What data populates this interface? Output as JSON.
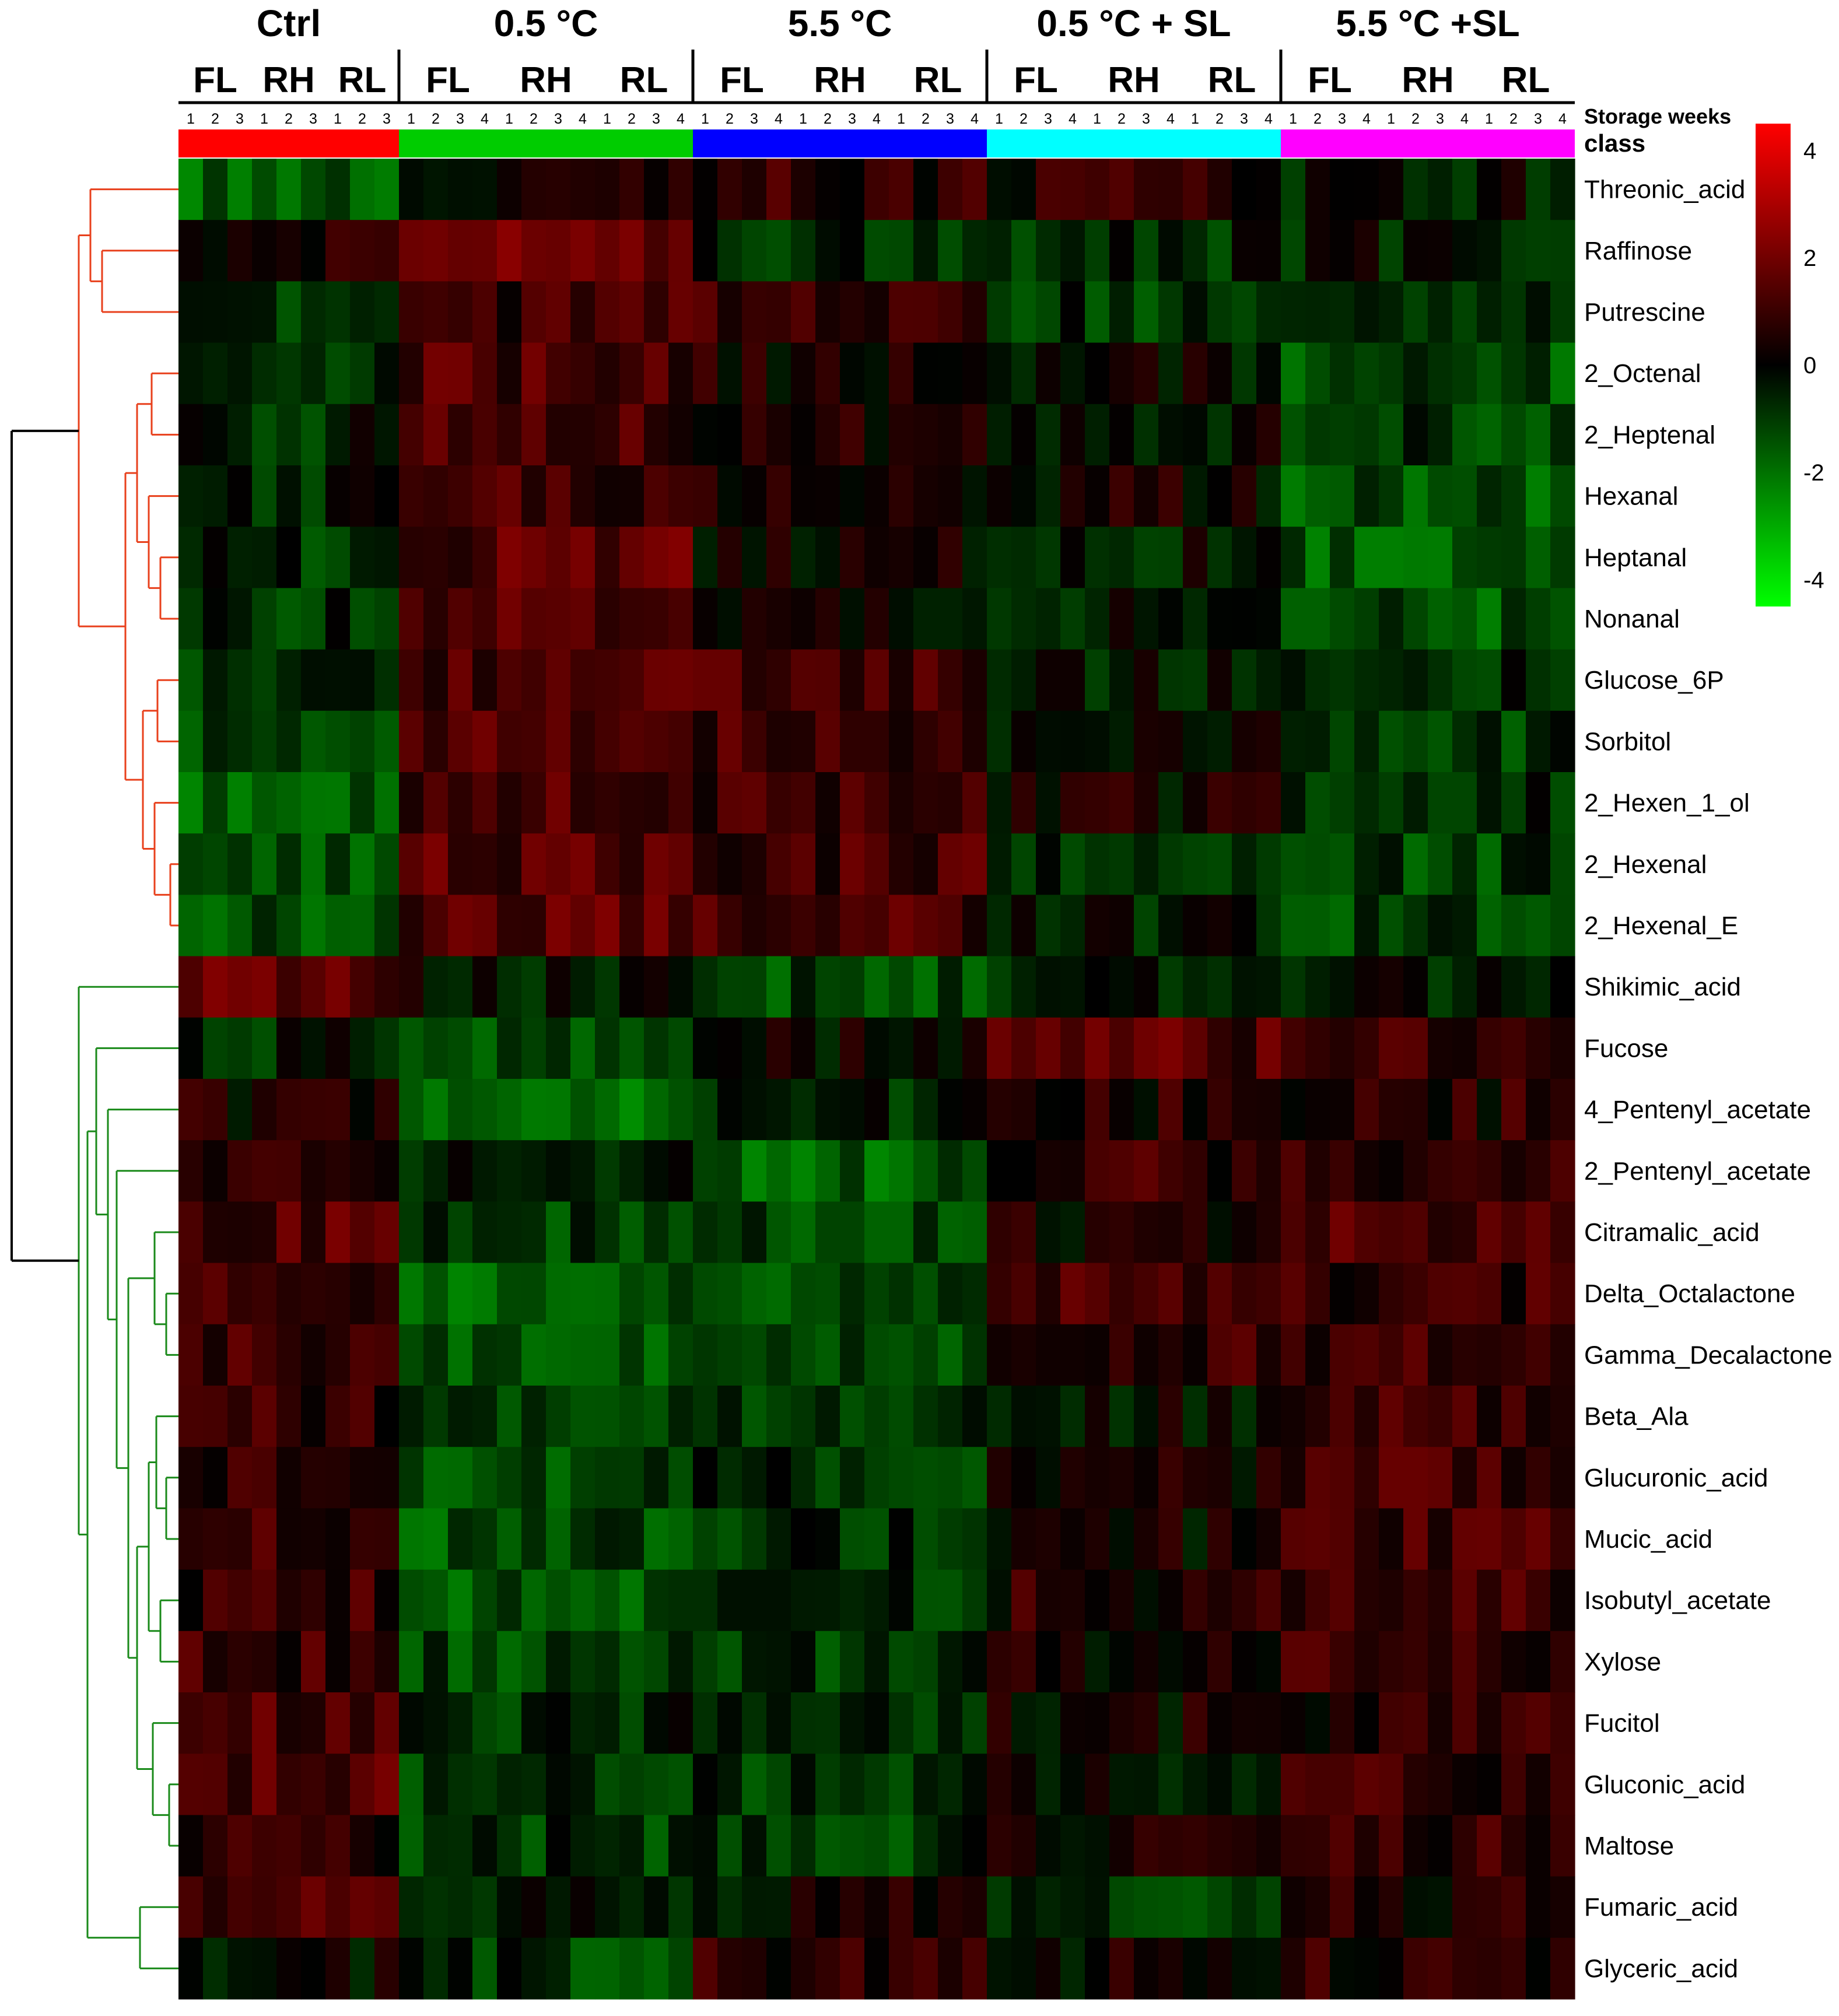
{
  "chart_data": {
    "type": "heatmap",
    "header_labels": {
      "storage_weeks": "Storage weeks",
      "class": "class"
    },
    "colorbar": {
      "ticks": [
        "4",
        "2",
        "0",
        "-2",
        "-4"
      ],
      "tick_values": [
        4,
        2,
        0,
        -2,
        -4
      ],
      "range": [
        -4.5,
        4.5
      ],
      "colors": {
        "high": "#ff0000",
        "mid": "#000000",
        "low": "#00ff00"
      }
    },
    "groups": [
      {
        "label": "Ctrl",
        "class_color": "#ff0000",
        "tissues": [
          {
            "label": "FL",
            "weeks": [
              "1",
              "2",
              "3"
            ]
          },
          {
            "label": "RH",
            "weeks": [
              "1",
              "2",
              "3"
            ]
          },
          {
            "label": "RL",
            "weeks": [
              "1",
              "2",
              "3"
            ]
          }
        ]
      },
      {
        "label": "0.5 °C",
        "class_color": "#00cc00",
        "tissues": [
          {
            "label": "FL",
            "weeks": [
              "1",
              "2",
              "3",
              "4"
            ]
          },
          {
            "label": "RH",
            "weeks": [
              "1",
              "2",
              "3",
              "4"
            ]
          },
          {
            "label": "RL",
            "weeks": [
              "1",
              "2",
              "3",
              "4"
            ]
          }
        ]
      },
      {
        "label": "5.5 °C",
        "class_color": "#0000ff",
        "tissues": [
          {
            "label": "FL",
            "weeks": [
              "1",
              "2",
              "3",
              "4"
            ]
          },
          {
            "label": "RH",
            "weeks": [
              "1",
              "2",
              "3",
              "4"
            ]
          },
          {
            "label": "RL",
            "weeks": [
              "1",
              "2",
              "3",
              "4"
            ]
          }
        ]
      },
      {
        "label": "0.5 °C + SL",
        "class_color": "#00ffff",
        "tissues": [
          {
            "label": "FL",
            "weeks": [
              "1",
              "2",
              "3",
              "4"
            ]
          },
          {
            "label": "RH",
            "weeks": [
              "1",
              "2",
              "3",
              "4"
            ]
          },
          {
            "label": "RL",
            "weeks": [
              "1",
              "2",
              "3",
              "4"
            ]
          }
        ]
      },
      {
        "label": "5.5 °C +SL",
        "class_color": "#ff00ff",
        "tissues": [
          {
            "label": "FL",
            "weeks": [
              "1",
              "2",
              "3",
              "4"
            ]
          },
          {
            "label": "RH",
            "weeks": [
              "1",
              "2",
              "3",
              "4"
            ]
          },
          {
            "label": "RL",
            "weeks": [
              "1",
              "2",
              "3",
              "4"
            ]
          }
        ]
      }
    ],
    "rows": [
      {
        "label": "Threonic_acid",
        "cluster": "red",
        "group_values": [
          -1.5,
          0.3,
          0.8,
          0.6,
          -0.3
        ]
      },
      {
        "label": "Raffinose",
        "cluster": "red",
        "group_values": [
          0.5,
          2.0,
          -0.5,
          -0.6,
          -0.4
        ]
      },
      {
        "label": "Putrescine",
        "cluster": "red",
        "group_values": [
          -0.8,
          1.0,
          0.9,
          -0.8,
          -1.0
        ]
      },
      {
        "label": "2_Octenal",
        "cluster": "red",
        "group_values": [
          -0.8,
          1.2,
          0.3,
          -0.2,
          -1.3
        ]
      },
      {
        "label": "2_Heptenal",
        "cluster": "red",
        "group_values": [
          -0.6,
          1.1,
          0.4,
          -0.1,
          -1.0
        ]
      },
      {
        "label": "Hexanal",
        "cluster": "red",
        "group_values": [
          -0.6,
          1.0,
          0.2,
          0.2,
          -1.4
        ]
      },
      {
        "label": "Heptanal",
        "cluster": "red",
        "group_values": [
          -0.8,
          1.4,
          0.3,
          -0.3,
          -1.5
        ]
      },
      {
        "label": "Nonanal",
        "cluster": "red",
        "group_values": [
          -0.8,
          1.4,
          0.2,
          -0.3,
          -1.4
        ]
      },
      {
        "label": "Glucose_6P",
        "cluster": "red",
        "group_values": [
          -1.0,
          1.3,
          1.0,
          -0.3,
          -0.7
        ]
      },
      {
        "label": "Sorbitol",
        "cluster": "red",
        "group_values": [
          -1.3,
          1.5,
          1.0,
          0.0,
          -0.9
        ]
      },
      {
        "label": "2_Hexen_1_ol",
        "cluster": "red",
        "group_values": [
          -1.5,
          1.3,
          0.8,
          0.2,
          -0.5
        ]
      },
      {
        "label": "2_Hexenal",
        "cluster": "red",
        "group_values": [
          -1.5,
          1.4,
          1.1,
          -0.5,
          -1.0
        ]
      },
      {
        "label": "2_Hexenal_E",
        "cluster": "red",
        "group_values": [
          -1.5,
          1.4,
          1.1,
          -0.5,
          -1.0
        ]
      },
      {
        "label": "Shikimic_acid",
        "cluster": "green",
        "group_values": [
          1.5,
          -0.2,
          -1.2,
          -0.3,
          -0.3
        ]
      },
      {
        "label": "Fucose",
        "cluster": "green",
        "group_values": [
          -0.5,
          -1.3,
          0.0,
          1.3,
          1.1
        ]
      },
      {
        "label": "4_Pentenyl_acetate",
        "cluster": "green",
        "group_values": [
          0.4,
          -1.6,
          -0.5,
          0.6,
          0.6
        ]
      },
      {
        "label": "2_Pentenyl_acetate",
        "cluster": "green",
        "group_values": [
          0.8,
          -0.6,
          -1.6,
          0.8,
          1.0
        ]
      },
      {
        "label": "Citramalic_acid",
        "cluster": "green",
        "group_values": [
          1.3,
          -1.0,
          -1.0,
          0.3,
          1.2
        ]
      },
      {
        "label": "Delta_Octalactone",
        "cluster": "green",
        "group_values": [
          0.8,
          -1.6,
          -1.0,
          1.0,
          0.9
        ]
      },
      {
        "label": "Gamma_Decalactone",
        "cluster": "green",
        "group_values": [
          0.9,
          -1.5,
          -0.9,
          0.9,
          0.8
        ]
      },
      {
        "label": "Beta_Ala",
        "cluster": "green",
        "group_values": [
          0.8,
          -1.2,
          -0.8,
          -0.1,
          1.0
        ]
      },
      {
        "label": "Glucuronic_acid",
        "cluster": "green",
        "group_values": [
          0.8,
          -1.3,
          -0.8,
          0.3,
          1.0
        ]
      },
      {
        "label": "Mucic_acid",
        "cluster": "green",
        "group_values": [
          1.0,
          -1.3,
          -0.7,
          0.2,
          1.0
        ]
      },
      {
        "label": "Isobutyl_acetate",
        "cluster": "green",
        "group_values": [
          0.8,
          -1.3,
          -0.9,
          0.6,
          1.1
        ]
      },
      {
        "label": "Xylose",
        "cluster": "green",
        "group_values": [
          0.9,
          -1.2,
          -1.0,
          0.3,
          1.0
        ]
      },
      {
        "label": "Fucitol",
        "cluster": "green",
        "group_values": [
          1.2,
          -0.7,
          -0.5,
          0.2,
          0.6
        ]
      },
      {
        "label": "Gluconic_acid",
        "cluster": "green",
        "group_values": [
          1.3,
          -0.8,
          -0.8,
          -0.2,
          0.8
        ]
      },
      {
        "label": "Maltose",
        "cluster": "green",
        "group_values": [
          0.8,
          -0.9,
          -0.9,
          0.4,
          0.7
        ]
      },
      {
        "label": "Fumaric_acid",
        "cluster": "green",
        "group_values": [
          1.4,
          -0.6,
          0.1,
          -0.8,
          0.4
        ]
      },
      {
        "label": "Glyceric_acid",
        "cluster": "green",
        "group_values": [
          0.0,
          -0.9,
          0.6,
          0.2,
          0.5
        ]
      }
    ]
  }
}
